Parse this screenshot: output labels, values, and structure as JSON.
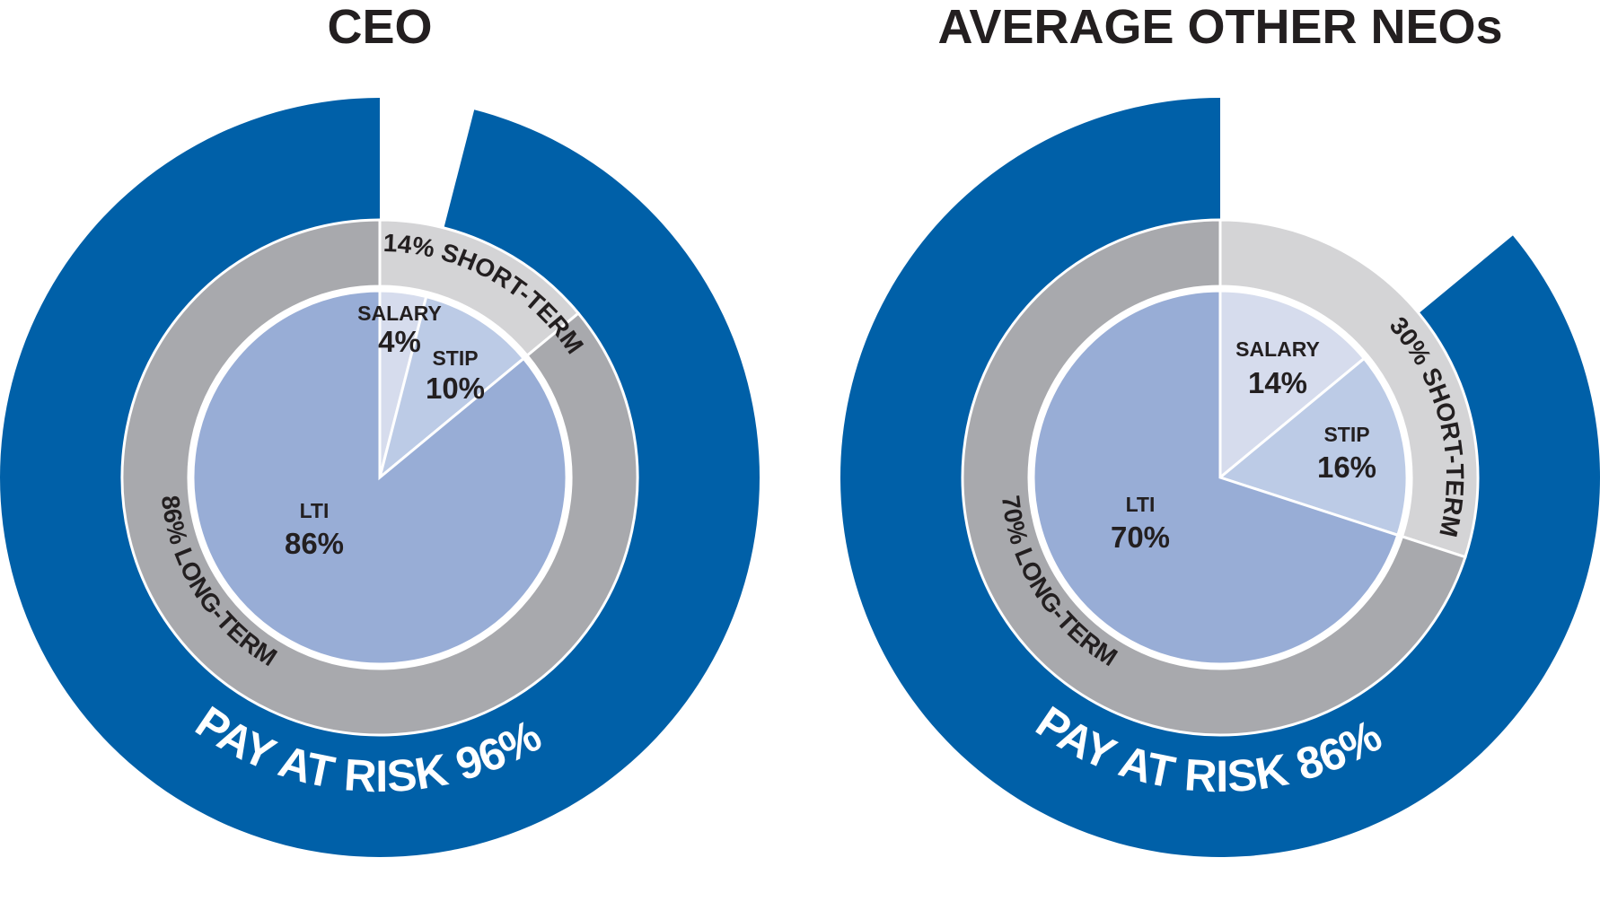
{
  "chart_data": [
    {
      "type": "pie",
      "title": "CEO",
      "slices": [
        {
          "name": "SALARY",
          "value": 4,
          "label": "4%"
        },
        {
          "name": "STIP",
          "value": 10,
          "label": "10%"
        },
        {
          "name": "LTI",
          "value": 86,
          "label": "86%"
        }
      ],
      "middle_ring": [
        {
          "name": "SHORT-TERM",
          "value": 14,
          "label": "14% SHORT-TERM"
        },
        {
          "name": "LONG-TERM",
          "value": 86,
          "label": "86% LONG-TERM"
        }
      ],
      "outer_ring": {
        "name": "PAY AT RISK",
        "value": 96,
        "label": "PAY AT RISK 96%"
      }
    },
    {
      "type": "pie",
      "title": "AVERAGE OTHER NEOs",
      "slices": [
        {
          "name": "SALARY",
          "value": 14,
          "label": "14%"
        },
        {
          "name": "STIP",
          "value": 16,
          "label": "16%"
        },
        {
          "name": "LTI",
          "value": 70,
          "label": "70%"
        }
      ],
      "middle_ring": [
        {
          "name": "SHORT-TERM",
          "value": 30,
          "label": "30% SHORT-TERM"
        },
        {
          "name": "LONG-TERM",
          "value": 70,
          "label": "70% LONG-TERM"
        }
      ],
      "outer_ring": {
        "name": "PAY AT RISK",
        "value": 86,
        "label": "PAY AT RISK 86%"
      }
    }
  ],
  "colors": {
    "outer_blue": "#0060a8",
    "ring_short": "#d4d4d6",
    "ring_long": "#a8a9ad",
    "salary": "#d6dced",
    "stip": "#bccbe6",
    "lti": "#98add6",
    "separator": "#ffffff",
    "text_dark": "#231f20",
    "text_light": "#ffffff"
  }
}
